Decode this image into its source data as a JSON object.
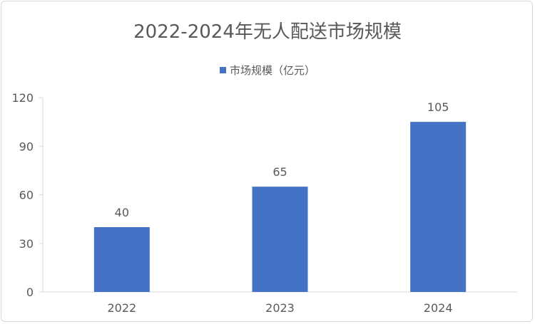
{
  "chart_data": {
    "type": "bar",
    "title": "2022-2024年无人配送市场规模",
    "categories": [
      "2022",
      "2023",
      "2024"
    ],
    "series": [
      {
        "name": "市场规模（亿元）",
        "values": [
          40,
          65,
          105
        ],
        "color": "#4472C4"
      }
    ],
    "xlabel": "",
    "ylabel": "",
    "ylim": [
      0,
      120
    ],
    "yticks": [
      0,
      30,
      60,
      90,
      120
    ],
    "grid": false,
    "legend": "top",
    "data_labels": true
  }
}
